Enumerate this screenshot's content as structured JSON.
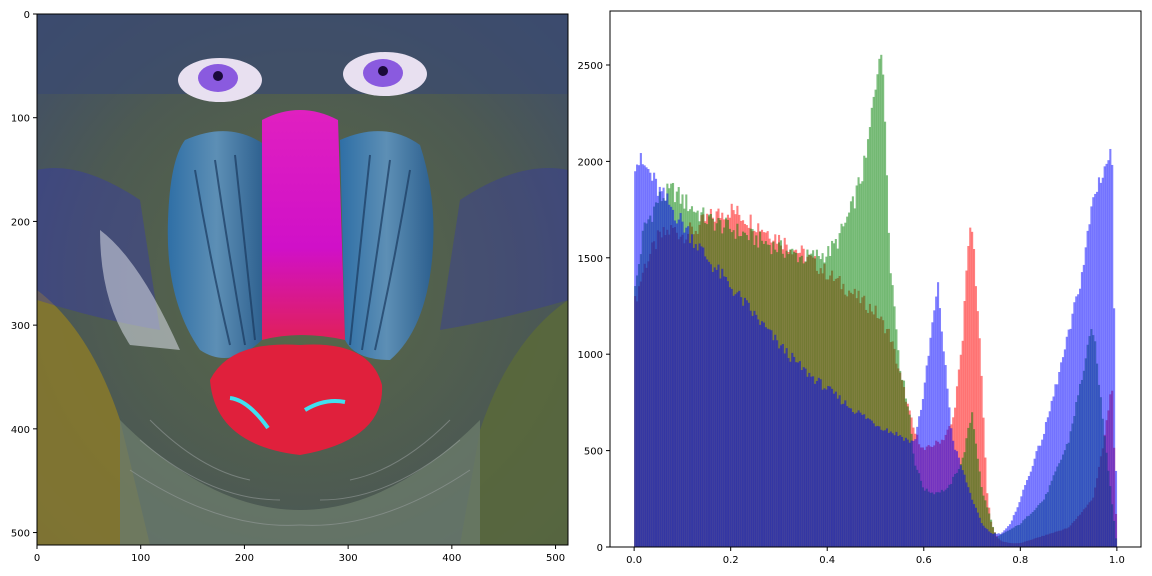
{
  "chart_data": [
    {
      "type": "image",
      "subject": "mandrill face with false-color channel mapping",
      "xlim": [
        0,
        512
      ],
      "ylim": [
        512,
        0
      ],
      "xticks": [
        0,
        100,
        200,
        300,
        400,
        500
      ],
      "yticks": [
        0,
        100,
        200,
        300,
        400,
        500
      ],
      "x_tick_labels": [
        "0",
        "100",
        "200",
        "300",
        "400",
        "500"
      ],
      "y_tick_labels": [
        "0",
        "100",
        "200",
        "300",
        "400",
        "500"
      ],
      "grid": false
    },
    {
      "type": "histogram",
      "xlim": [
        -0.05,
        1.05
      ],
      "ylim": [
        0,
        2780
      ],
      "xticks": [
        0.0,
        0.2,
        0.4,
        0.6,
        0.8,
        1.0
      ],
      "yticks": [
        0,
        500,
        1000,
        1500,
        2000,
        2500
      ],
      "x_tick_labels": [
        "0.0",
        "0.2",
        "0.4",
        "0.6",
        "0.8",
        "1.0"
      ],
      "y_tick_labels": [
        "0",
        "500",
        "1000",
        "1500",
        "2000",
        "2500"
      ],
      "grid": false,
      "bins": 256,
      "alpha": 0.5,
      "series": [
        {
          "color": "#ff0000",
          "x": [
            0.0,
            0.02,
            0.05,
            0.08,
            0.1,
            0.13,
            0.15,
            0.18,
            0.2,
            0.25,
            0.3,
            0.35,
            0.4,
            0.45,
            0.5,
            0.53,
            0.55,
            0.58,
            0.6,
            0.62,
            0.64,
            0.66,
            0.68,
            0.69,
            0.7,
            0.72,
            0.73,
            0.74,
            0.75,
            0.76,
            0.78,
            0.8,
            0.85,
            0.9,
            0.95,
            0.97,
            0.99,
            1.0
          ],
          "y": [
            1250,
            1450,
            1600,
            1650,
            1620,
            1650,
            1700,
            1730,
            1750,
            1680,
            1600,
            1520,
            1420,
            1320,
            1220,
            1100,
            900,
            600,
            500,
            530,
            560,
            650,
            1050,
            1550,
            1650,
            900,
            300,
            120,
            60,
            30,
            20,
            20,
            60,
            100,
            250,
            500,
            850,
            0
          ]
        },
        {
          "color": "#008000",
          "x": [
            0.0,
            0.02,
            0.05,
            0.08,
            0.1,
            0.15,
            0.2,
            0.25,
            0.3,
            0.35,
            0.4,
            0.42,
            0.45,
            0.48,
            0.5,
            0.51,
            0.52,
            0.53,
            0.55,
            0.57,
            0.58,
            0.6,
            0.62,
            0.65,
            0.68,
            0.7,
            0.72,
            0.75,
            0.8,
            0.85,
            0.9,
            0.95,
            1.0
          ],
          "y": [
            1300,
            1650,
            1800,
            1850,
            1800,
            1700,
            1650,
            1600,
            1550,
            1500,
            1520,
            1580,
            1750,
            2000,
            2400,
            2650,
            2200,
            1500,
            950,
            700,
            450,
            300,
            280,
            300,
            450,
            700,
            300,
            50,
            120,
            250,
            550,
            1150,
            0
          ]
        },
        {
          "color": "#0000ff",
          "x": [
            0.0,
            0.01,
            0.03,
            0.05,
            0.08,
            0.1,
            0.15,
            0.2,
            0.25,
            0.3,
            0.35,
            0.4,
            0.45,
            0.5,
            0.53,
            0.55,
            0.57,
            0.58,
            0.6,
            0.62,
            0.63,
            0.64,
            0.66,
            0.68,
            0.7,
            0.72,
            0.74,
            0.76,
            0.78,
            0.8,
            0.85,
            0.9,
            0.93,
            0.95,
            0.97,
            0.99,
            1.0
          ],
          "y": [
            2000,
            2000,
            1950,
            1850,
            1750,
            1680,
            1500,
            1350,
            1200,
            1050,
            920,
            820,
            720,
            640,
            600,
            580,
            550,
            540,
            800,
            1200,
            1350,
            1050,
            550,
            400,
            250,
            120,
            70,
            70,
            120,
            250,
            600,
            1100,
            1450,
            1800,
            1950,
            2050,
            0
          ]
        }
      ]
    }
  ]
}
